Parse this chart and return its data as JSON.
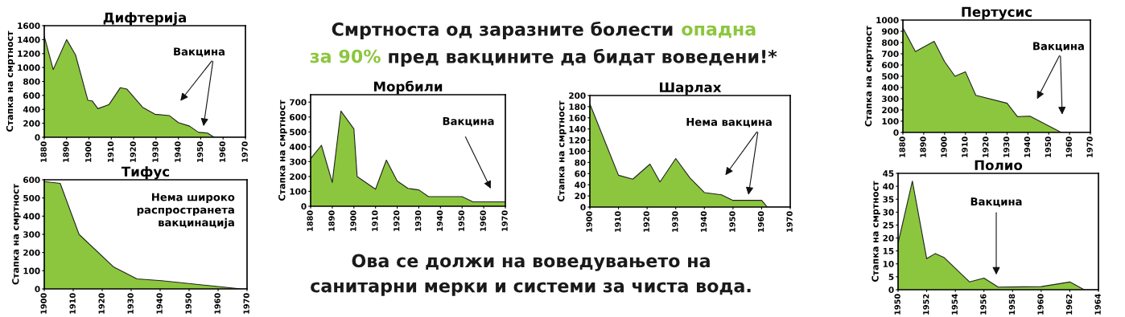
{
  "chart_data": [
    {
      "type": "area",
      "title": "Дифтерија",
      "ylabel": "Стапка на смртност",
      "x": [
        1880,
        1884,
        1890,
        1894,
        1899.5,
        1901.5,
        1904,
        1909,
        1914,
        1917,
        1924,
        1929.5,
        1936,
        1940,
        1945,
        1949,
        1953,
        1956,
        1970
      ],
      "series": [
        {
          "color": "#8cc63e",
          "values": [
            1450,
            970,
            1400,
            1180,
            530,
            520,
            410,
            470,
            710,
            690,
            430,
            330,
            310,
            210,
            160,
            70,
            60,
            0,
            0
          ]
        }
      ],
      "xlim": [
        1880,
        1970
      ],
      "xticks": [
        1880,
        1890,
        1900,
        1910,
        1920,
        1930,
        1940,
        1950,
        1960,
        1970
      ],
      "ylim": [
        0,
        1600
      ],
      "yticks": [
        0,
        200,
        400,
        600,
        800,
        1000,
        1200,
        1400,
        1600
      ],
      "annotations": [
        "Вакцина"
      ]
    },
    {
      "type": "area",
      "title": "Тифус",
      "ylabel": "Стапка на смртност",
      "x": [
        1900,
        1905.5,
        1912,
        1924,
        1932,
        1940.5,
        1968,
        1970
      ],
      "series": [
        {
          "color": "#8cc63e",
          "values": [
            590,
            580,
            300,
            120,
            55,
            45,
            0,
            0
          ]
        }
      ],
      "xlim": [
        1900,
        1970
      ],
      "xticks": [
        1900,
        1910,
        1920,
        1930,
        1940,
        1950,
        1960,
        1970
      ],
      "ylim": [
        0,
        600
      ],
      "yticks": [
        0,
        100,
        200,
        300,
        400,
        500,
        600
      ],
      "annotations": [
        "Нема широко\nраспространета\nвакцинација"
      ]
    },
    {
      "type": "area",
      "title": "Морбили",
      "ylabel": "Стапка на смртност",
      "x": [
        1880,
        1885,
        1890,
        1894,
        1900,
        1901.5,
        1910,
        1915,
        1920,
        1925,
        1930,
        1934.5,
        1950,
        1955,
        1970
      ],
      "series": [
        {
          "color": "#8cc63e",
          "values": [
            320,
            410,
            160,
            640,
            520,
            200,
            115,
            310,
            170,
            120,
            110,
            65,
            65,
            30,
            30
          ]
        }
      ],
      "xlim": [
        1880,
        1970
      ],
      "xticks": [
        1880,
        1890,
        1900,
        1910,
        1920,
        1930,
        1940,
        1950,
        1960,
        1970
      ],
      "ylim": [
        0,
        750
      ],
      "yticks": [
        0,
        100,
        200,
        300,
        400,
        500,
        600,
        700
      ],
      "annotations": [
        "Вакцина"
      ]
    },
    {
      "type": "area",
      "title": "Шарлах",
      "ylabel": "Стапка на смртност",
      "x": [
        1900,
        1910,
        1915,
        1921,
        1924.5,
        1930,
        1935,
        1940,
        1946,
        1950,
        1960,
        1962,
        1970
      ],
      "series": [
        {
          "color": "#8cc63e",
          "values": [
            185,
            57,
            50,
            77,
            45,
            87,
            52,
            26,
            22,
            12,
            12,
            0,
            0
          ]
        }
      ],
      "xlim": [
        1900,
        1970
      ],
      "xticks": [
        1900,
        1910,
        1920,
        1930,
        1940,
        1950,
        1960,
        1970
      ],
      "ylim": [
        0,
        200
      ],
      "yticks": [
        0,
        20,
        40,
        60,
        80,
        100,
        120,
        140,
        160,
        180,
        200
      ],
      "annotations": [
        "Нема вакцина"
      ]
    },
    {
      "type": "area",
      "title": "Пертусис",
      "ylabel": "Стапка на смртност",
      "x": [
        1880,
        1886,
        1895,
        1900,
        1905,
        1910,
        1915,
        1930,
        1935,
        1941,
        1956,
        1970
      ],
      "series": [
        {
          "color": "#8cc63e",
          "values": [
            930,
            720,
            810,
            630,
            500,
            540,
            330,
            260,
            140,
            145,
            0,
            0
          ]
        }
      ],
      "xlim": [
        1880,
        1970
      ],
      "xticks": [
        1880,
        1890,
        1900,
        1910,
        1920,
        1930,
        1940,
        1950,
        1960,
        1970
      ],
      "ylim": [
        0,
        1000
      ],
      "yticks": [
        0,
        100,
        200,
        300,
        400,
        500,
        600,
        700,
        800,
        900,
        1000
      ],
      "annotations": [
        "Вакцина"
      ]
    },
    {
      "type": "area",
      "title": "Полио",
      "ylabel": "Стапка на смртност",
      "x": [
        1950,
        1951,
        1952,
        1952.6,
        1953.2,
        1955,
        1956,
        1957,
        1960,
        1962,
        1963,
        1964
      ],
      "series": [
        {
          "color": "#8cc63e",
          "values": [
            18,
            42,
            12,
            14,
            12.5,
            3,
            4.5,
            1,
            1.2,
            3,
            0,
            0
          ]
        }
      ],
      "xlim": [
        1950,
        1964
      ],
      "xticks": [
        1950,
        1952,
        1954,
        1956,
        1958,
        1960,
        1962,
        1964
      ],
      "ylim": [
        0,
        45
      ],
      "yticks": [
        0,
        5,
        10,
        15,
        20,
        25,
        30,
        35,
        40,
        45
      ],
      "annotations": [
        "Вакцина"
      ]
    },
    {
      "type": "other",
      "annotations": [
        "Смртноста од заразните болести ",
        "опадна",
        "за 90%",
        " пред вакцините да бидат воведени!*",
        "Ова се должи на воведувањето на",
        "санитарни мерки и системи за чиста вода."
      ],
      "colors": [
        "#1a1a1a",
        "#8cc63e",
        "#8cc63e",
        "#1a1a1a",
        "#1a1a1a",
        "#1a1a1a"
      ]
    }
  ]
}
